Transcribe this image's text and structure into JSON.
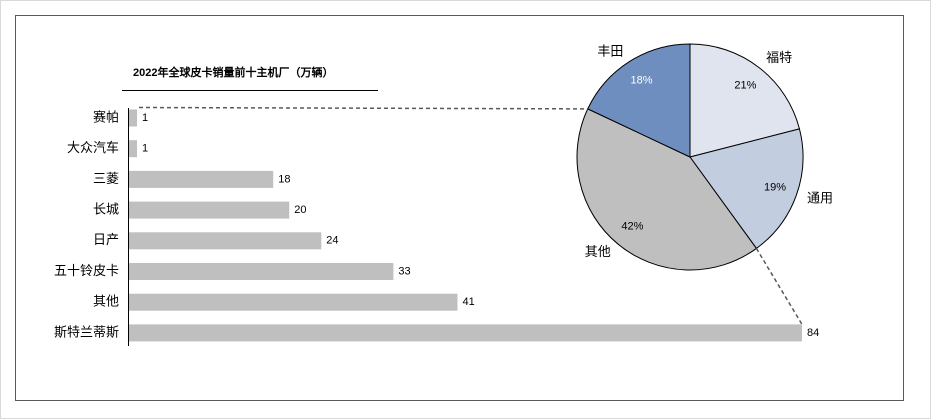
{
  "chart_data": [
    {
      "type": "bar",
      "orientation": "horizontal",
      "title": "2022年全球皮卡销量前十主机厂（万辆）",
      "categories": [
        "赛帕",
        "大众汽车",
        "三菱",
        "长城",
        "日产",
        "五十铃皮卡",
        "其他",
        "斯特兰蒂斯"
      ],
      "values": [
        1,
        1,
        18,
        20,
        24,
        33,
        41,
        84
      ],
      "color": "#bfbfbf"
    },
    {
      "type": "pie",
      "categories": [
        "福特",
        "通用",
        "其他",
        "丰田"
      ],
      "values": [
        21,
        19,
        42,
        18
      ],
      "value_labels": [
        "21%",
        "19%",
        "42%",
        "18%"
      ],
      "colors": [
        "#dfe4ef",
        "#c3cde0",
        "#bfbfbf",
        "#6d8ebf"
      ]
    }
  ]
}
